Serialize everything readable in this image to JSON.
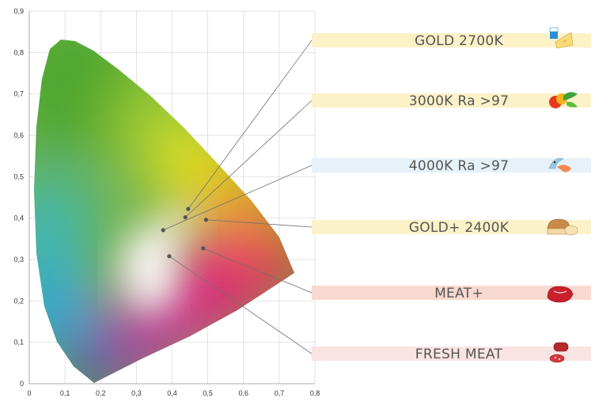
{
  "chart_data": {
    "type": "scatter",
    "title": "",
    "xlabel": "",
    "ylabel": "",
    "xlim": [
      0,
      0.8
    ],
    "ylim": [
      0,
      0.9
    ],
    "x_ticks": [
      "0",
      "0,1",
      "0,2",
      "0,3",
      "0,4",
      "0,5",
      "0,6",
      "0,7",
      "0,8"
    ],
    "y_ticks": [
      "0",
      "0,1",
      "0,2",
      "0,3",
      "0,4",
      "0,5",
      "0,6",
      "0,7",
      "0,8",
      "0,9"
    ],
    "grid": true,
    "background": "CIE 1931 chromaticity diagram",
    "points": [
      {
        "label": "GOLD 2700K",
        "x": 0.445,
        "y": 0.422,
        "band_color": "#fbf2c8",
        "icon": "cheese-icon"
      },
      {
        "label": "3000K Ra  >97",
        "x": 0.437,
        "y": 0.402,
        "band_color": "#fbf2c8",
        "icon": "vegetables-icon"
      },
      {
        "label": "4000K Ra  >97",
        "x": 0.375,
        "y": 0.371,
        "band_color": "#e6f1f8",
        "icon": "fish-icon"
      },
      {
        "label": "GOLD+ 2400K",
        "x": 0.495,
        "y": 0.396,
        "band_color": "#fbf2c8",
        "icon": "bread-icon"
      },
      {
        "label": "MEAT+",
        "x": 0.487,
        "y": 0.327,
        "band_color": "#f8d9cf",
        "icon": "meat-icon"
      },
      {
        "label": "FRESH MEAT",
        "x": 0.392,
        "y": 0.308,
        "band_color": "#fae3e3",
        "icon": "salami-icon"
      }
    ]
  }
}
